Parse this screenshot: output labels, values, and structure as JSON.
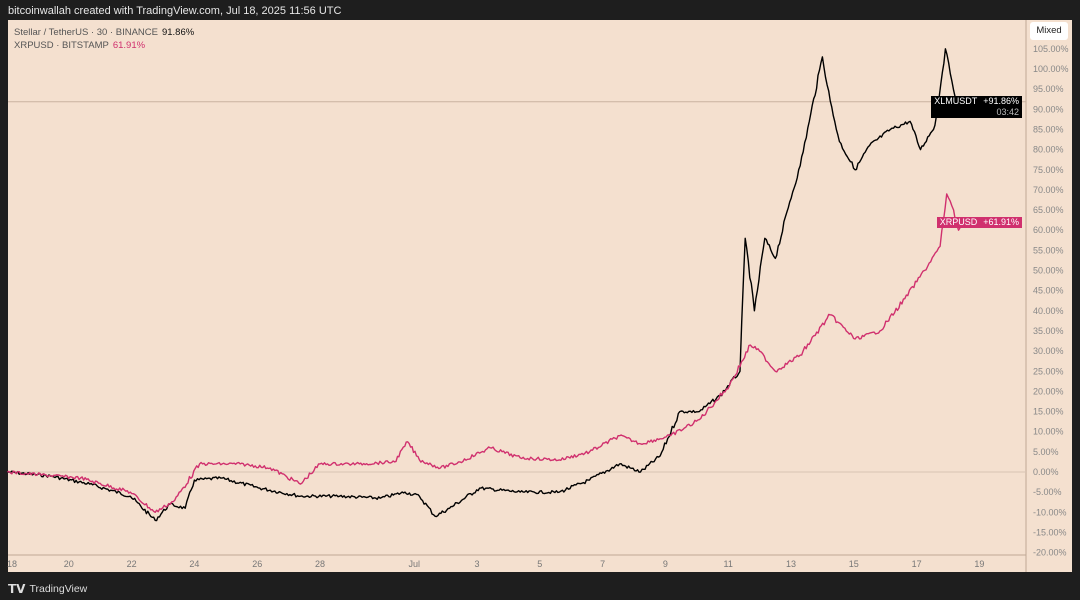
{
  "header": {
    "caption": "bitcoinwallah created with TradingView.com, Jul 18, 2025 11:56 UTC"
  },
  "legend": [
    {
      "label": "Stellar / TetherUS · 30 · BINANCE",
      "value": "91.86%",
      "color": "#111111"
    },
    {
      "label": "XRPUSD · BITSTAMP",
      "value": "61.91%",
      "color": "#d0306e"
    }
  ],
  "scale_button": "Mixed",
  "footer": {
    "brand": "TradingView"
  },
  "price_tags": [
    {
      "symbol": "XLMUSDT",
      "value": "+91.86%",
      "countdown": "03:42",
      "bg": "#000000"
    },
    {
      "symbol": "XRPUSD",
      "value": "+61.91%",
      "bg": "#d0306e"
    }
  ],
  "chart_data": {
    "type": "line",
    "xlim": [
      "2025-06-18T00:00",
      "2025-07-21T00:00"
    ],
    "ylim": [
      -21,
      110
    ],
    "y_ticks": [
      -20,
      -15,
      -10,
      -5,
      0,
      5,
      10,
      15,
      20,
      25,
      30,
      35,
      40,
      45,
      50,
      55,
      60,
      65,
      70,
      75,
      80,
      85,
      90,
      95,
      100,
      105
    ],
    "y_tick_labels": [
      "-20.00%",
      "-15.00%",
      "-10.00%",
      "-5.00%",
      "0.00%",
      "5.00%",
      "10.00%",
      "15.00%",
      "20.00%",
      "25.00%",
      "30.00%",
      "35.00%",
      "40.00%",
      "45.00%",
      "50.00%",
      "55.00%",
      "60.00%",
      "65.00%",
      "70.00%",
      "75.00%",
      "80.00%",
      "85.00%",
      "90.00%",
      "95.00%",
      "100.00%",
      "105.00%"
    ],
    "x_ticks": [
      {
        "date": "2025-06-18T00:00",
        "label": "18"
      },
      {
        "date": "2025-06-20T00:00",
        "label": "20"
      },
      {
        "date": "2025-06-22T00:00",
        "label": "22"
      },
      {
        "date": "2025-06-24T00:00",
        "label": "24"
      },
      {
        "date": "2025-06-26T00:00",
        "label": "26"
      },
      {
        "date": "2025-06-28T00:00",
        "label": "28"
      },
      {
        "date": "2025-07-01T00:00",
        "label": "Jul"
      },
      {
        "date": "2025-07-03T00:00",
        "label": "3"
      },
      {
        "date": "2025-07-05T00:00",
        "label": "5"
      },
      {
        "date": "2025-07-07T00:00",
        "label": "7"
      },
      {
        "date": "2025-07-09T00:00",
        "label": "9"
      },
      {
        "date": "2025-07-11T00:00",
        "label": "11"
      },
      {
        "date": "2025-07-13T00:00",
        "label": "13"
      },
      {
        "date": "2025-07-15T00:00",
        "label": "15"
      },
      {
        "date": "2025-07-17T00:00",
        "label": "17"
      },
      {
        "date": "2025-07-19T00:00",
        "label": "19"
      }
    ],
    "series": [
      {
        "name": "XLMUSDT",
        "color": "#000000",
        "points": [
          [
            "2025-06-18T01:00",
            0
          ],
          [
            "2025-06-19T10:00",
            -1
          ],
          [
            "2025-06-20T16:00",
            -3
          ],
          [
            "2025-06-21T23:00",
            -6
          ],
          [
            "2025-06-22T18:00",
            -12
          ],
          [
            "2025-06-23T05:00",
            -8
          ],
          [
            "2025-06-23T17:00",
            -9
          ],
          [
            "2025-06-24T00:00",
            -2
          ],
          [
            "2025-06-24T20:00",
            -1.5
          ],
          [
            "2025-06-26T02:00",
            -4
          ],
          [
            "2025-06-27T09:00",
            -6
          ],
          [
            "2025-06-28T15:00",
            -6
          ],
          [
            "2025-06-29T22:00",
            -6.5
          ],
          [
            "2025-06-30T17:00",
            -5
          ],
          [
            "2025-07-01T04:00",
            -6
          ],
          [
            "2025-07-01T16:00",
            -11
          ],
          [
            "2025-07-02T03:00",
            -9
          ],
          [
            "2025-07-03T02:00",
            -4
          ],
          [
            "2025-07-04T09:00",
            -5
          ],
          [
            "2025-07-05T15:00",
            -5
          ],
          [
            "2025-07-06T14:00",
            -2
          ],
          [
            "2025-07-07T13:00",
            2
          ],
          [
            "2025-07-08T05:00",
            0
          ],
          [
            "2025-07-08T20:00",
            4
          ],
          [
            "2025-07-09T11:00",
            15
          ],
          [
            "2025-07-10T02:00",
            15
          ],
          [
            "2025-07-10T18:00",
            19
          ],
          [
            "2025-07-11T09:00",
            25
          ],
          [
            "2025-07-11T13:00",
            58
          ],
          [
            "2025-07-11T20:00",
            40
          ],
          [
            "2025-07-12T04:00",
            58
          ],
          [
            "2025-07-12T12:00",
            53
          ],
          [
            "2025-07-12T23:00",
            67
          ],
          [
            "2025-07-13T07:00",
            76
          ],
          [
            "2025-07-13T14:00",
            87
          ],
          [
            "2025-07-14T00:00",
            103
          ],
          [
            "2025-07-14T06:00",
            92
          ],
          [
            "2025-07-14T13:00",
            82
          ],
          [
            "2025-07-15T01:00",
            75
          ],
          [
            "2025-07-15T12:00",
            81
          ],
          [
            "2025-07-16T04:00",
            85
          ],
          [
            "2025-07-16T19:00",
            87
          ],
          [
            "2025-07-17T03:00",
            80
          ],
          [
            "2025-07-17T14:00",
            86
          ],
          [
            "2025-07-17T22:00",
            105
          ],
          [
            "2025-07-18T03:00",
            97
          ],
          [
            "2025-07-18T08:00",
            90
          ],
          [
            "2025-07-18T11:00",
            91.86
          ]
        ]
      },
      {
        "name": "XRPUSD",
        "color": "#d0306e",
        "points": [
          [
            "2025-06-18T01:00",
            0
          ],
          [
            "2025-06-20T09:00",
            -1.5
          ],
          [
            "2025-06-21T23:00",
            -5
          ],
          [
            "2025-06-22T18:00",
            -10
          ],
          [
            "2025-06-23T09:00",
            -7
          ],
          [
            "2025-06-24T04:00",
            2
          ],
          [
            "2025-06-25T11:00",
            2
          ],
          [
            "2025-06-26T10:00",
            1
          ],
          [
            "2025-06-27T09:00",
            -3
          ],
          [
            "2025-06-28T00:00",
            2
          ],
          [
            "2025-06-29T06:00",
            2
          ],
          [
            "2025-06-30T09:00",
            2.5
          ],
          [
            "2025-06-30T19:00",
            7.5
          ],
          [
            "2025-07-01T04:00",
            3
          ],
          [
            "2025-07-01T20:00",
            1
          ],
          [
            "2025-07-02T11:00",
            2.5
          ],
          [
            "2025-07-03T10:00",
            6
          ],
          [
            "2025-07-04T09:00",
            3.5
          ],
          [
            "2025-07-05T15:00",
            3
          ],
          [
            "2025-07-06T14:00",
            5
          ],
          [
            "2025-07-07T13:00",
            9
          ],
          [
            "2025-07-08T05:00",
            7
          ],
          [
            "2025-07-09T04:00",
            9
          ],
          [
            "2025-07-10T02:00",
            13
          ],
          [
            "2025-07-11T01:00",
            21.5
          ],
          [
            "2025-07-11T17:00",
            31.5
          ],
          [
            "2025-07-12T00:00",
            30
          ],
          [
            "2025-07-12T12:00",
            25
          ],
          [
            "2025-07-13T07:00",
            29
          ],
          [
            "2025-07-14T06:00",
            39
          ],
          [
            "2025-07-15T01:00",
            33
          ],
          [
            "2025-07-15T20:00",
            35
          ],
          [
            "2025-07-16T15:00",
            43
          ],
          [
            "2025-07-17T06:00",
            50
          ],
          [
            "2025-07-17T18:00",
            56
          ],
          [
            "2025-07-17T23:00",
            69
          ],
          [
            "2025-07-18T03:00",
            66
          ],
          [
            "2025-07-18T08:00",
            60
          ],
          [
            "2025-07-18T11:00",
            61.91
          ]
        ]
      }
    ]
  }
}
